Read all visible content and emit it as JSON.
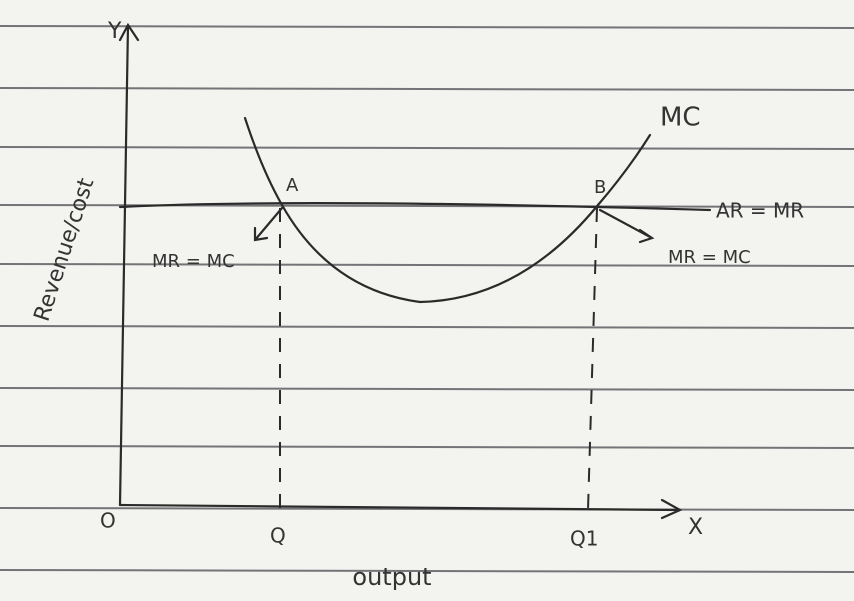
{
  "axes": {
    "y_label": "Y",
    "x_label": "X",
    "origin": "O",
    "y_title": "Revenue/cost",
    "x_title": "output"
  },
  "curves": {
    "mc": "MC",
    "ar_mr": "AR = MR"
  },
  "points": [
    {
      "label": "A",
      "note": "MR = MC",
      "quantity": "Q"
    },
    {
      "label": "B",
      "note": "MR = MC",
      "quantity": "Q1"
    }
  ]
}
